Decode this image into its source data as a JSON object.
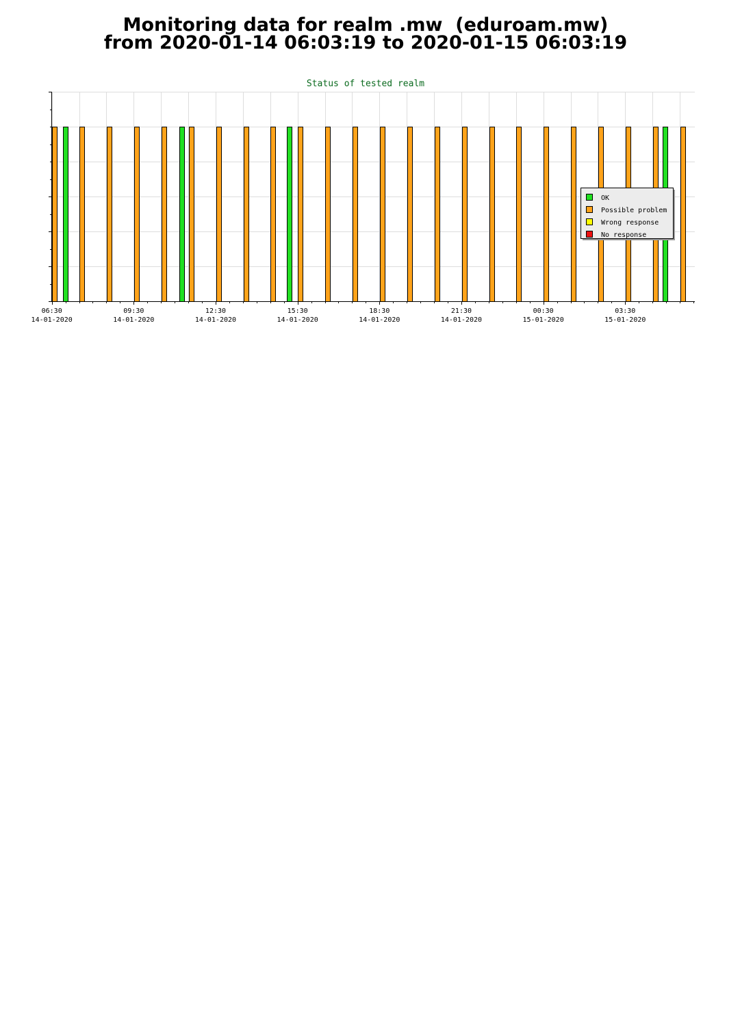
{
  "title": {
    "line1": "Monitoring data for realm .mw  (eduroam.mw)",
    "line2": "from 2020-01-14 06:03:19 to 2020-01-15 06:03:19"
  },
  "colors": {
    "ok": "#22e022",
    "possible_problem": "#ffa31a",
    "wrong_response": "#ffff00",
    "no_response": "#ee1111",
    "chart_title": "#0a6a1e",
    "grid": "#dddddd"
  },
  "chart_data": {
    "type": "bar",
    "title": "Status of tested realm",
    "xlabel": "",
    "ylabel": "",
    "xlim": [
      "2020-01-14 06:29",
      "2020-01-15 06:03"
    ],
    "ylim": [
      0,
      1.2
    ],
    "grid": true,
    "legend_position": "right",
    "x_ticks": [
      {
        "time": "06:30",
        "date": "14-01-2020"
      },
      {
        "time": "09:30",
        "date": "14-01-2020"
      },
      {
        "time": "12:30",
        "date": "14-01-2020"
      },
      {
        "time": "15:30",
        "date": "14-01-2020"
      },
      {
        "time": "18:30",
        "date": "14-01-2020"
      },
      {
        "time": "21:30",
        "date": "14-01-2020"
      },
      {
        "time": "00:30",
        "date": "15-01-2020"
      },
      {
        "time": "03:30",
        "date": "15-01-2020"
      }
    ],
    "legend": [
      "OK",
      "Possible problem",
      "Wrong response",
      "No response"
    ],
    "series": [
      {
        "name": "OK",
        "color": "#22e022",
        "bars": [
          {
            "x": "2020-01-14 06:55",
            "value": 1
          },
          {
            "x": "2020-01-14 11:10",
            "value": 1
          },
          {
            "x": "2020-01-14 15:07",
            "value": 1
          },
          {
            "x": "2020-01-15 04:52",
            "value": 1
          }
        ]
      },
      {
        "name": "Possible problem",
        "color": "#ffa31a",
        "bars": [
          {
            "x": "2020-01-14 06:31",
            "value": 1
          },
          {
            "x": "2020-01-14 07:31",
            "value": 1
          },
          {
            "x": "2020-01-14 08:31",
            "value": 1
          },
          {
            "x": "2020-01-14 09:31",
            "value": 1
          },
          {
            "x": "2020-01-14 10:31",
            "value": 1
          },
          {
            "x": "2020-01-14 11:31",
            "value": 1
          },
          {
            "x": "2020-01-14 12:31",
            "value": 1
          },
          {
            "x": "2020-01-14 13:31",
            "value": 1
          },
          {
            "x": "2020-01-14 14:31",
            "value": 1
          },
          {
            "x": "2020-01-14 15:31",
            "value": 1
          },
          {
            "x": "2020-01-14 16:31",
            "value": 1
          },
          {
            "x": "2020-01-14 17:31",
            "value": 1
          },
          {
            "x": "2020-01-14 18:31",
            "value": 1
          },
          {
            "x": "2020-01-14 19:31",
            "value": 1
          },
          {
            "x": "2020-01-14 20:31",
            "value": 1
          },
          {
            "x": "2020-01-14 21:31",
            "value": 1
          },
          {
            "x": "2020-01-14 22:31",
            "value": 1
          },
          {
            "x": "2020-01-14 23:31",
            "value": 1
          },
          {
            "x": "2020-01-15 00:31",
            "value": 1
          },
          {
            "x": "2020-01-15 01:31",
            "value": 1
          },
          {
            "x": "2020-01-15 02:31",
            "value": 1
          },
          {
            "x": "2020-01-15 03:31",
            "value": 1
          },
          {
            "x": "2020-01-15 04:31",
            "value": 1
          },
          {
            "x": "2020-01-15 05:31",
            "value": 1
          }
        ]
      },
      {
        "name": "Wrong response",
        "color": "#ffff00",
        "bars": []
      },
      {
        "name": "No response",
        "color": "#ee1111",
        "bars": []
      }
    ]
  }
}
